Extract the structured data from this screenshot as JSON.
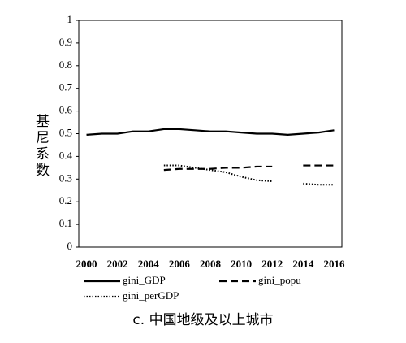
{
  "chart_data": {
    "type": "line",
    "title": "c. 中国地级及以上城市",
    "y_label": "基尼系数",
    "categories": [
      "2000",
      null,
      "2002",
      null,
      "2004",
      null,
      "2006",
      null,
      "2008",
      null,
      "2010",
      null,
      "2012",
      null,
      "2014",
      null,
      "2016"
    ],
    "series": [
      {
        "name": "gini_GDP",
        "color": "#000000",
        "line_style": "solid",
        "values": [
          0.495,
          0.5,
          0.5,
          0.51,
          0.51,
          0.52,
          0.52,
          0.515,
          0.51,
          0.51,
          0.505,
          0.5,
          0.5,
          0.495,
          0.5,
          0.505,
          0.515
        ]
      },
      {
        "name": "gini_popu",
        "color": "#000000",
        "line_style": "dash",
        "values": [
          null,
          null,
          null,
          null,
          null,
          0.34,
          0.345,
          0.345,
          0.345,
          0.35,
          0.35,
          0.355,
          0.355,
          null,
          0.36,
          0.36,
          0.36
        ]
      },
      {
        "name": "gini_perGDP",
        "color": "#000000",
        "line_style": "dot",
        "values": [
          null,
          null,
          null,
          null,
          null,
          0.36,
          0.36,
          0.35,
          0.34,
          0.33,
          0.31,
          0.295,
          0.29,
          null,
          0.28,
          0.275,
          0.275
        ]
      }
    ],
    "ylim": [
      0,
      1
    ],
    "yticks": [
      0,
      0.1,
      0.2,
      0.3,
      0.4,
      0.5,
      0.6,
      0.7,
      0.8,
      0.9,
      1
    ],
    "grid": false
  }
}
